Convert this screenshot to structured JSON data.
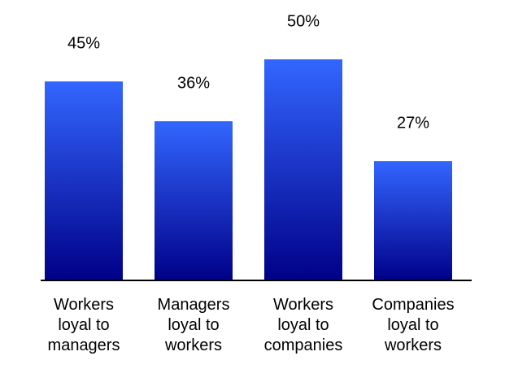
{
  "chart_data": {
    "type": "bar",
    "categories": [
      [
        "Workers",
        "loyal to",
        "managers"
      ],
      [
        "Managers",
        "loyal to",
        "workers"
      ],
      [
        "Workers",
        "loyal to",
        "companies"
      ],
      [
        "Companies",
        "loyal to",
        "workers"
      ]
    ],
    "values": [
      45,
      36,
      50,
      27
    ],
    "value_labels": [
      "45%",
      "36%",
      "50%",
      "27%"
    ],
    "gradient_colors": [
      "#3366ff",
      "#000088"
    ]
  }
}
